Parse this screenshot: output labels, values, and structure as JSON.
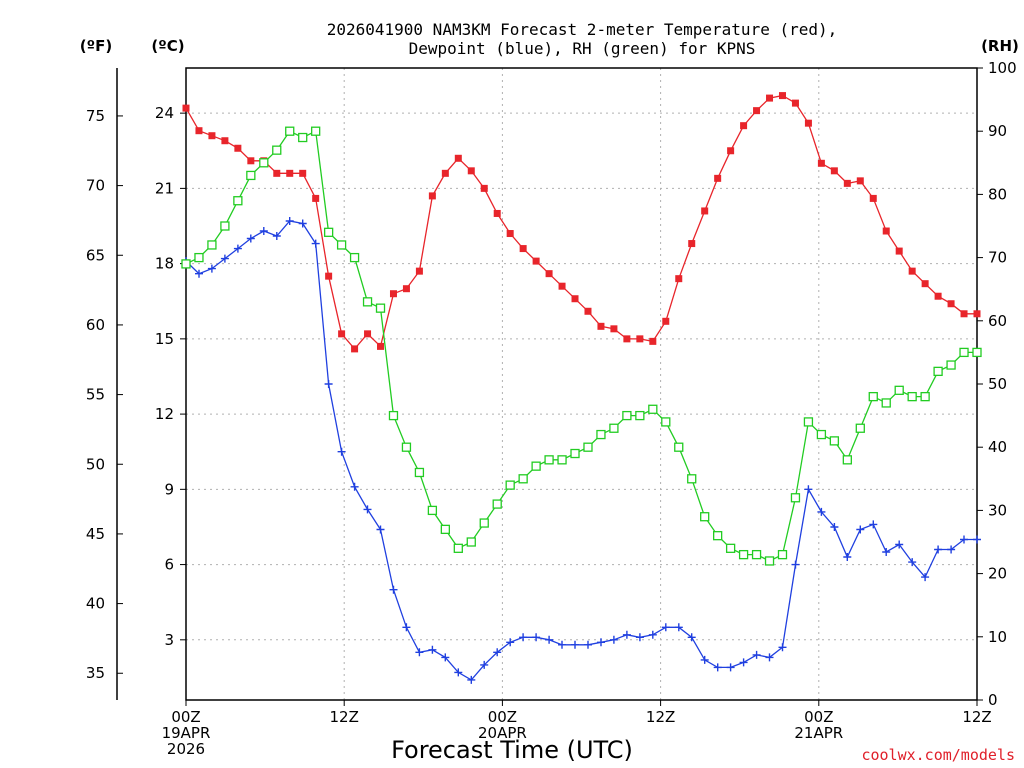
{
  "chart_data": {
    "type": "line",
    "title_line1": "2026041900 NAM3KM Forecast 2-meter Temperature (red),",
    "title_line2": "Dewpoint (blue), RH (green) for KPNS",
    "xlabel": "Forecast Time (UTC)",
    "credit": "coolwx.com/models",
    "unit_left_f": "(ºF)",
    "unit_left_c": "(ºC)",
    "unit_right": "(RH)",
    "x_ticks": [
      {
        "hour": 0,
        "lines": [
          "00Z",
          "19APR",
          "2026"
        ]
      },
      {
        "hour": 12,
        "lines": [
          "12Z"
        ]
      },
      {
        "hour": 24,
        "lines": [
          "00Z",
          "20APR"
        ]
      },
      {
        "hour": 36,
        "lines": [
          "12Z"
        ]
      },
      {
        "hour": 48,
        "lines": [
          "00Z",
          "21APR"
        ]
      },
      {
        "hour": 60,
        "lines": [
          "12Z"
        ]
      }
    ],
    "xlim": [
      0,
      60
    ],
    "ylim_c": [
      0.6,
      25.8
    ],
    "ylim_rh": [
      0,
      100
    ],
    "yticks_c": [
      3,
      6,
      9,
      12,
      15,
      18,
      21,
      24
    ],
    "yticks_f": [
      35,
      40,
      45,
      50,
      55,
      60,
      65,
      70,
      75
    ],
    "yticks_rh": [
      0,
      10,
      20,
      30,
      40,
      50,
      60,
      70,
      80,
      90,
      100
    ],
    "series": [
      {
        "name": "Temperature (C)",
        "color": "#e8252b",
        "marker": "filled-square",
        "values": [
          24.2,
          23.3,
          23.1,
          22.9,
          22.6,
          22.1,
          22.1,
          21.6,
          21.6,
          21.6,
          20.6,
          17.5,
          15.2,
          14.6,
          15.2,
          14.7,
          16.8,
          17.0,
          17.7,
          20.7,
          21.6,
          22.2,
          21.7,
          21.0,
          20.0,
          19.2,
          18.6,
          18.1,
          17.6,
          17.1,
          16.6,
          16.1,
          15.5,
          15.4,
          15.0,
          15.0,
          14.9,
          15.7,
          17.4,
          18.8,
          20.1,
          21.4,
          22.5,
          23.5,
          24.1,
          24.6,
          24.7,
          24.4,
          23.6,
          22.0,
          21.7,
          21.2,
          21.3,
          20.6,
          19.3,
          18.5,
          17.7,
          17.2,
          16.7,
          16.4,
          16.0,
          16.0
        ]
      },
      {
        "name": "Dewpoint (C)",
        "color": "#2040e0",
        "marker": "plus",
        "values": [
          18.1,
          17.6,
          17.8,
          18.2,
          18.6,
          19.0,
          19.3,
          19.1,
          19.7,
          19.6,
          18.8,
          13.2,
          10.5,
          9.1,
          8.2,
          7.4,
          5.0,
          3.5,
          2.5,
          2.6,
          2.3,
          1.7,
          1.4,
          2.0,
          2.5,
          2.9,
          3.1,
          3.1,
          3.0,
          2.8,
          2.8,
          2.8,
          2.9,
          3.0,
          3.2,
          3.1,
          3.2,
          3.5,
          3.5,
          3.1,
          2.2,
          1.9,
          1.9,
          2.1,
          2.4,
          2.3,
          2.7,
          6.0,
          9.0,
          8.1,
          7.5,
          6.3,
          7.4,
          7.6,
          6.5,
          6.8,
          6.1,
          5.5,
          6.6,
          6.6,
          7.0,
          7.0
        ]
      },
      {
        "name": "RH (%)",
        "color": "#22cc22",
        "marker": "open-square",
        "values": [
          69,
          70,
          72,
          75,
          79,
          83,
          85,
          87,
          90,
          89,
          90,
          74,
          72,
          70,
          63,
          62,
          45,
          40,
          36,
          30,
          27,
          24,
          25,
          28,
          31,
          34,
          35,
          37,
          38,
          38,
          39,
          40,
          42,
          43,
          45,
          45,
          46,
          44,
          40,
          35,
          29,
          26,
          24,
          23,
          23,
          22,
          23,
          32,
          44,
          42,
          41,
          38,
          43,
          48,
          47,
          49,
          48,
          48,
          52,
          53,
          55,
          55
        ]
      }
    ]
  }
}
